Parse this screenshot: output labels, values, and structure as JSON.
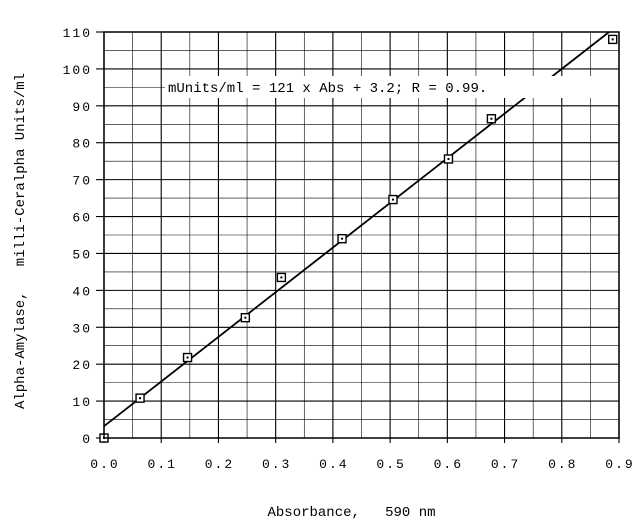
{
  "chart_data": {
    "type": "scatter",
    "xlabel": "Absorbance,   590 nm",
    "ylabel": "Alpha-Amylase,   milli-Ceralpha Units/ml",
    "xlim": [
      0.0,
      0.9
    ],
    "ylim": [
      0,
      110
    ],
    "x_ticks": [
      "0.0",
      "0.1",
      "0.2",
      "0.3",
      "0.4",
      "0.5",
      "0.6",
      "0.7",
      "0.8",
      "0.9"
    ],
    "y_ticks": [
      "0",
      "10",
      "20",
      "30",
      "40",
      "50",
      "60",
      "70",
      "80",
      "90",
      "100",
      "110"
    ],
    "grid": true,
    "series": [
      {
        "marker": "square",
        "points": [
          {
            "x": 0.0,
            "y": 0.0
          },
          {
            "x": 0.063,
            "y": 10.8
          },
          {
            "x": 0.146,
            "y": 21.8
          },
          {
            "x": 0.247,
            "y": 32.6
          },
          {
            "x": 0.31,
            "y": 43.5
          },
          {
            "x": 0.416,
            "y": 54.0
          },
          {
            "x": 0.505,
            "y": 64.6
          },
          {
            "x": 0.602,
            "y": 75.6
          },
          {
            "x": 0.677,
            "y": 86.5
          },
          {
            "x": 0.889,
            "y": 108.0
          }
        ]
      }
    ],
    "fit_line": {
      "slope": 121,
      "intercept": 3.2
    },
    "annotation": "mUnits/ml = 121 x Abs + 3.2;   R = 0.99."
  }
}
